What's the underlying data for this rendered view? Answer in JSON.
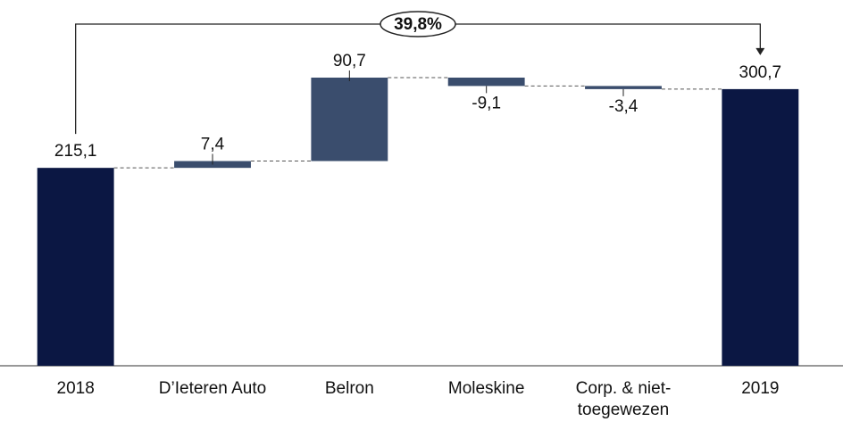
{
  "chart_data": {
    "type": "waterfall",
    "categories": [
      "2018",
      "D’Ieteren Auto",
      "Belron",
      "Moleskine",
      "Corp. & niet-toegewezen",
      "2019"
    ],
    "values": [
      215.1,
      7.4,
      90.7,
      -9.1,
      -3.4,
      300.7
    ],
    "value_labels": [
      "215,1",
      "7,4",
      "90,7",
      "-9,1",
      "-3,4",
      "300,7"
    ],
    "measure": [
      "total",
      "relative",
      "relative",
      "relative",
      "relative",
      "total"
    ],
    "total_color": "#0b1743",
    "delta_color": "#3a4d6d",
    "annotation": "39,8%"
  }
}
